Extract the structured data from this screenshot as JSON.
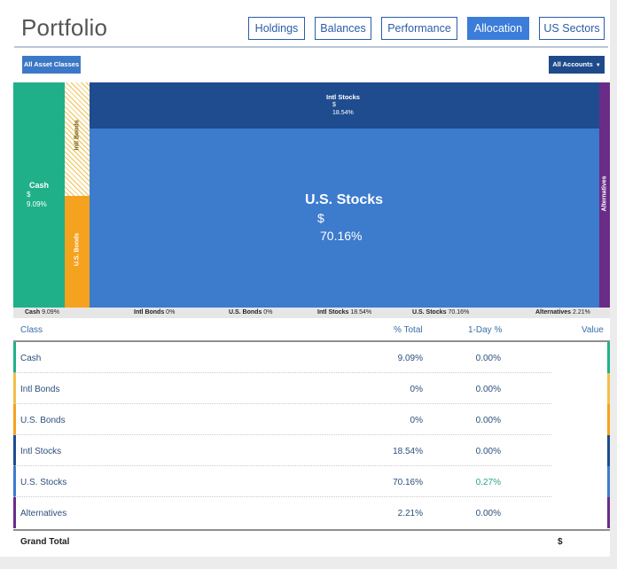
{
  "header": {
    "title": "Portfolio",
    "tabs": [
      {
        "label": "Holdings",
        "active": false
      },
      {
        "label": "Balances",
        "active": false
      },
      {
        "label": "Performance",
        "active": false
      },
      {
        "label": "Allocation",
        "active": true
      },
      {
        "label": "US Sectors",
        "active": false
      }
    ]
  },
  "filters": {
    "asset_classes_label": "All Asset Classes",
    "accounts_label": "All Accounts"
  },
  "treemap": {
    "cash": {
      "label": "Cash",
      "value": "$",
      "pct": "9.09%",
      "color": "#1fb08a"
    },
    "intl_bonds": {
      "label": "Intl Bonds",
      "color": "#f1c048"
    },
    "us_bonds": {
      "label": "U.S. Bonds",
      "color": "#f5a21e"
    },
    "intl_stocks": {
      "label": "Intl Stocks",
      "value": "$",
      "pct": "18.54%",
      "color": "#1e4c8f"
    },
    "us_stocks": {
      "label": "U.S. Stocks",
      "value": "$",
      "pct": "70.16%",
      "color": "#3d7bcd"
    },
    "alternatives": {
      "label": "Alternatives",
      "color": "#6a2c87"
    }
  },
  "legend": [
    {
      "name": "Cash",
      "pct": "9.09%"
    },
    {
      "name": "Intl Bonds",
      "pct": "0%"
    },
    {
      "name": "U.S. Bonds",
      "pct": "0%"
    },
    {
      "name": "Intl Stocks",
      "pct": "18.54%"
    },
    {
      "name": "U.S. Stocks",
      "pct": "70.16%"
    },
    {
      "name": "Alternatives",
      "pct": "2.21%"
    }
  ],
  "table": {
    "headers": {
      "class": "Class",
      "pct_total": "% Total",
      "one_day": "1-Day %",
      "value": "Value"
    },
    "rows": [
      {
        "class": "Cash",
        "pct_total": "9.09%",
        "one_day": "0.00%",
        "color": "#1fb08a",
        "positive": false
      },
      {
        "class": "Intl Bonds",
        "pct_total": "0%",
        "one_day": "0.00%",
        "color": "#f1c048",
        "positive": false
      },
      {
        "class": "U.S. Bonds",
        "pct_total": "0%",
        "one_day": "0.00%",
        "color": "#f5a21e",
        "positive": false
      },
      {
        "class": "Intl Stocks",
        "pct_total": "18.54%",
        "one_day": "0.00%",
        "color": "#1e4c8f",
        "positive": false
      },
      {
        "class": "U.S. Stocks",
        "pct_total": "70.16%",
        "one_day": "0.27%",
        "color": "#3d7bcd",
        "positive": true
      },
      {
        "class": "Alternatives",
        "pct_total": "2.21%",
        "one_day": "0.00%",
        "color": "#6a2c87",
        "positive": false
      }
    ],
    "grand_total": {
      "label": "Grand Total",
      "value": "$"
    }
  },
  "colors": {
    "positive": "#2aa58a",
    "link": "#2c4f7c"
  }
}
